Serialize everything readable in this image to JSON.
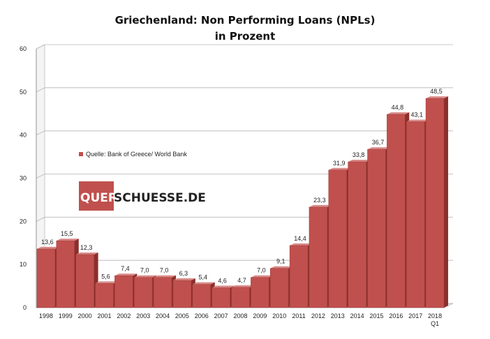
{
  "chart_data": {
    "type": "bar",
    "title_line1": "Griechenland: Non Performing  Loans (NPLs)",
    "title_line2": "in Prozent",
    "categories": [
      "1998",
      "1999",
      "2000",
      "2001",
      "2002",
      "2003",
      "2004",
      "2005",
      "2006",
      "2007",
      "2008",
      "2009",
      "2010",
      "2011",
      "2012",
      "2013",
      "2014",
      "2015",
      "2016",
      "2017",
      "2018"
    ],
    "category_sublabels": {
      "2018": "Q1"
    },
    "series": [
      {
        "name": "Quelle: Bank of Greece/ World Bank",
        "values": [
          13.6,
          15.5,
          12.3,
          5.6,
          7.4,
          7.0,
          7.0,
          6.3,
          5.4,
          4.6,
          4.7,
          7.0,
          9.1,
          14.4,
          23.3,
          31.9,
          33.8,
          36.7,
          44.8,
          43.1,
          48.5
        ],
        "labels": [
          "13,6",
          "15,5",
          "12,3",
          "5,6",
          "7,4",
          "7,0",
          "7,0",
          "6,3",
          "5,4",
          "4,6",
          "4,7",
          "7,0",
          "9,1",
          "14,4",
          "23,3",
          "31,9",
          "33,8",
          "36,7",
          "44,8",
          "43,1",
          "48,5"
        ]
      }
    ],
    "ylim": [
      0,
      60
    ],
    "yticks": [
      0,
      10,
      20,
      30,
      40,
      50,
      60
    ],
    "grid": true,
    "legend_placement": "middle-left",
    "bar_color": "#c0504d",
    "bar_side_color": "#8b2f2c",
    "bar_top_color": "#d98a88",
    "xlabel": "",
    "ylabel": ""
  },
  "watermark": {
    "part1": "QUER",
    "part2": "SCHUESSE.DE",
    "accent": "#c0504d"
  }
}
